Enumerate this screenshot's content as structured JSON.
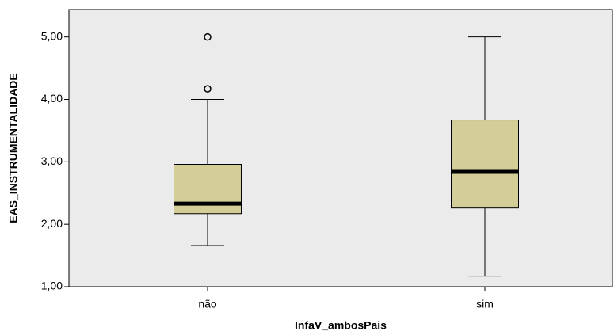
{
  "chart_data": {
    "type": "box",
    "x_label": "InfaV_ambosPais",
    "y_label": "EAS_INSTRUMENTALIDADE",
    "categories": [
      "não",
      "sim"
    ],
    "boxes": [
      {
        "min": 1.66,
        "q1": 2.17,
        "median": 2.33,
        "q3": 2.96,
        "max": 4.0,
        "outliers": [
          4.17,
          5.0
        ]
      },
      {
        "min": 1.17,
        "q1": 2.26,
        "median": 2.84,
        "q3": 3.67,
        "max": 5.0,
        "outliers": []
      }
    ],
    "color": "#d3ce97",
    "background": "#ebebeb",
    "ylim": [
      1,
      5.44
    ],
    "yticks": [
      {
        "value": 1,
        "label": "1,00"
      },
      {
        "value": 2,
        "label": "2,00"
      },
      {
        "value": 3,
        "label": "3,00"
      },
      {
        "value": 4,
        "label": "4,00"
      },
      {
        "value": 5,
        "label": "5,00"
      }
    ]
  }
}
